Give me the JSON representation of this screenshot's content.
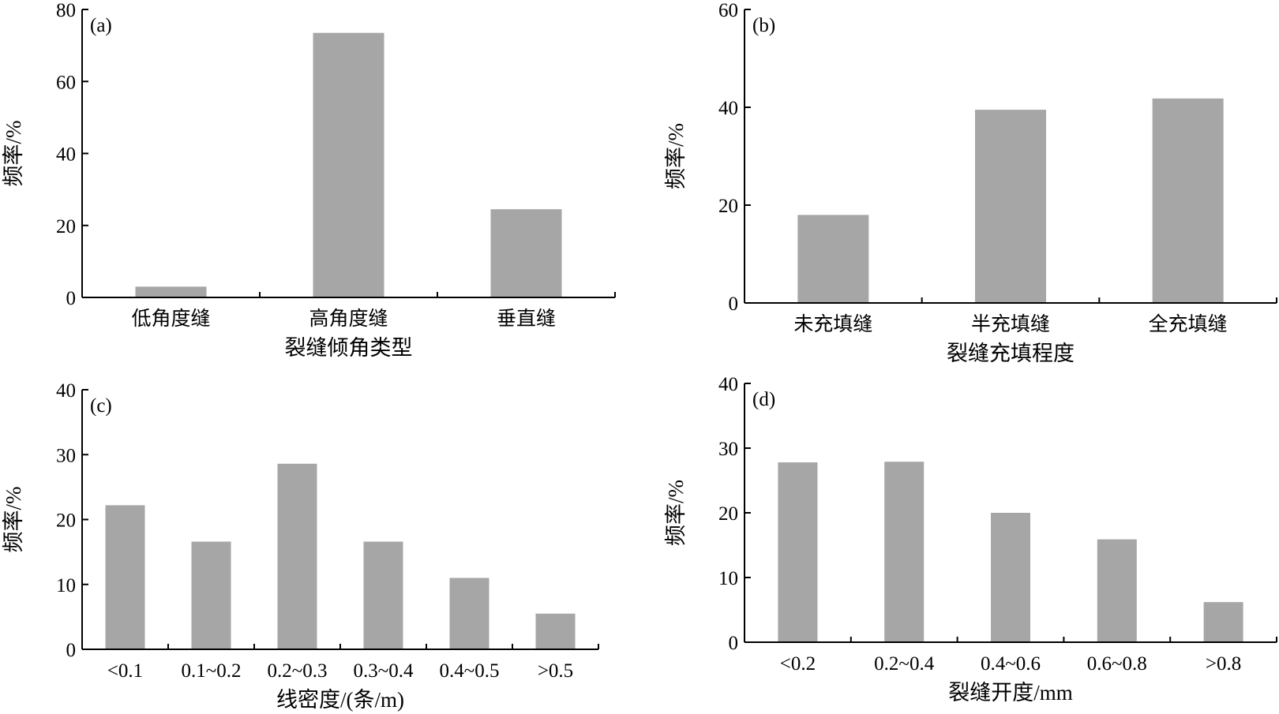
{
  "chart_data": [
    {
      "type": "bar",
      "panel_label": "(a)",
      "categories": [
        "低角度缝",
        "高角度缝",
        "垂直缝"
      ],
      "values": [
        3,
        73.5,
        24.5
      ],
      "xlabel": "裂缝倾角类型",
      "ylabel": "频率/%",
      "ylim": [
        0,
        80
      ],
      "yticks": [
        0,
        20,
        40,
        60,
        80
      ],
      "grid": false,
      "bar_color": "#a6a6a6"
    },
    {
      "type": "bar",
      "panel_label": "(b)",
      "categories": [
        "未充填缝",
        "半充填缝",
        "全充填缝"
      ],
      "values": [
        18,
        39.5,
        41.8
      ],
      "xlabel": "裂缝充填程度",
      "ylabel": "频率/%",
      "ylim": [
        0,
        60
      ],
      "yticks": [
        0,
        20,
        40,
        60
      ],
      "grid": false,
      "bar_color": "#a6a6a6"
    },
    {
      "type": "bar",
      "panel_label": "(c)",
      "categories": [
        "<0.1",
        "0.1~0.2",
        "0.2~0.3",
        "0.3~0.4",
        "0.4~0.5",
        ">0.5"
      ],
      "values": [
        22.2,
        16.6,
        28.6,
        16.6,
        11.0,
        5.5
      ],
      "xlabel": "线密度/(条/m)",
      "ylabel": "频率/%",
      "ylim": [
        0,
        40
      ],
      "yticks": [
        0,
        10,
        20,
        30,
        40
      ],
      "grid": false,
      "bar_color": "#a6a6a6"
    },
    {
      "type": "bar",
      "panel_label": "(d)",
      "categories": [
        "<0.2",
        "0.2~0.4",
        "0.4~0.6",
        "0.6~0.8",
        ">0.8"
      ],
      "values": [
        27.8,
        27.9,
        20.0,
        15.9,
        6.2
      ],
      "xlabel": "裂缝开度/mm",
      "ylabel": "频率/%",
      "ylim": [
        0,
        40
      ],
      "yticks": [
        0,
        10,
        20,
        30,
        40
      ],
      "grid": false,
      "bar_color": "#a6a6a6"
    }
  ]
}
